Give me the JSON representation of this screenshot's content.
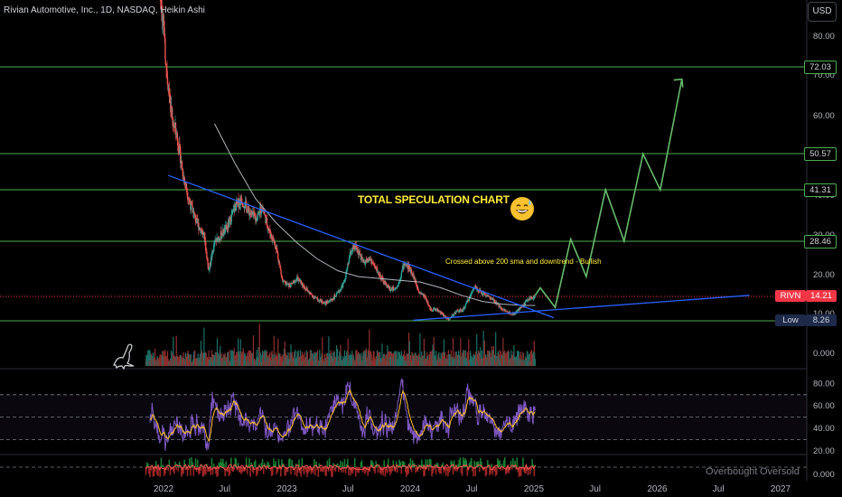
{
  "title": "Rivian Automotive, Inc., 1D, NASDAQ, Heikin Ashi",
  "currency_button": "USD",
  "annotations": {
    "headline": "TOTAL SPECULATION CHART",
    "note": "Crossed above 200 sma and downtrend - Bullish"
  },
  "price_labels": {
    "symbol": "RIVN",
    "last_price": "14.21",
    "low_label": "Low",
    "low_value": "8.26"
  },
  "oscillator_legend": {
    "overbought": "Overbought",
    "oversold": "Oversold"
  },
  "colors": {
    "background": "#000000",
    "level_line": "#4caf50",
    "trendline": "#2962ff",
    "projection": "#66bb6a",
    "up_candle": "#26a69a",
    "down_candle": "#ef5350",
    "rsi_line": "#7e57c2",
    "rsi_signal": "#fbc02d",
    "sma": "#b2b5be",
    "price_tag": "#f23645"
  },
  "chart_data": {
    "type": "candlestick",
    "title": "Rivian Automotive, Inc., 1D, NASDAQ, Heikin Ashi",
    "x_tick_labels": [
      "2022",
      "Jul",
      "2023",
      "Jul",
      "2024",
      "Jul",
      "2025",
      "Jul",
      "2026",
      "Jul",
      "2027"
    ],
    "x_tick_dates": [
      "2022-01-01",
      "2022-07-01",
      "2023-01-01",
      "2023-07-01",
      "2024-01-01",
      "2024-07-01",
      "2025-01-01",
      "2025-07-01",
      "2026-01-01",
      "2026-07-01",
      "2027-01-01"
    ],
    "price_axis": {
      "ticks": [
        10,
        20,
        30,
        40,
        60,
        70,
        80
      ],
      "tick_labels": [
        "10.00",
        "20.00",
        "30.00",
        "40.00",
        "60.00",
        "70.00",
        "80.00"
      ],
      "range": [
        8,
        86
      ]
    },
    "horizontal_levels": [
      {
        "value": 72.03,
        "label": "72.03"
      },
      {
        "value": 50.57,
        "label": "50.57"
      },
      {
        "value": 41.31,
        "label": "41.31"
      },
      {
        "value": 28.46,
        "label": "28.46"
      }
    ],
    "last_price": 14.21,
    "low": 8.26,
    "price_series": [
      {
        "date": "2021-11-10",
        "close": 100
      },
      {
        "date": "2021-12-01",
        "close": 112
      },
      {
        "date": "2021-12-20",
        "close": 95
      },
      {
        "date": "2022-01-10",
        "close": 72
      },
      {
        "date": "2022-01-25",
        "close": 60
      },
      {
        "date": "2022-02-10",
        "close": 55
      },
      {
        "date": "2022-03-01",
        "close": 45
      },
      {
        "date": "2022-03-20",
        "close": 38
      },
      {
        "date": "2022-04-10",
        "close": 33
      },
      {
        "date": "2022-05-01",
        "close": 30
      },
      {
        "date": "2022-05-15",
        "close": 21
      },
      {
        "date": "2022-06-01",
        "close": 28
      },
      {
        "date": "2022-06-20",
        "close": 30
      },
      {
        "date": "2022-07-10",
        "close": 32
      },
      {
        "date": "2022-08-01",
        "close": 37
      },
      {
        "date": "2022-08-20",
        "close": 39
      },
      {
        "date": "2022-09-10",
        "close": 36
      },
      {
        "date": "2022-10-01",
        "close": 34
      },
      {
        "date": "2022-10-20",
        "close": 37
      },
      {
        "date": "2022-11-10",
        "close": 31
      },
      {
        "date": "2022-12-01",
        "close": 27
      },
      {
        "date": "2022-12-20",
        "close": 18
      },
      {
        "date": "2023-01-10",
        "close": 17
      },
      {
        "date": "2023-02-01",
        "close": 19
      },
      {
        "date": "2023-02-20",
        "close": 17
      },
      {
        "date": "2023-03-10",
        "close": 15
      },
      {
        "date": "2023-04-01",
        "close": 13.5
      },
      {
        "date": "2023-04-25",
        "close": 12.5
      },
      {
        "date": "2023-05-15",
        "close": 13.5
      },
      {
        "date": "2023-06-01",
        "close": 15
      },
      {
        "date": "2023-06-20",
        "close": 18
      },
      {
        "date": "2023-07-10",
        "close": 26
      },
      {
        "date": "2023-07-25",
        "close": 27
      },
      {
        "date": "2023-08-15",
        "close": 23
      },
      {
        "date": "2023-09-05",
        "close": 24
      },
      {
        "date": "2023-09-25",
        "close": 21
      },
      {
        "date": "2023-10-15",
        "close": 18
      },
      {
        "date": "2023-11-05",
        "close": 16
      },
      {
        "date": "2023-11-25",
        "close": 17
      },
      {
        "date": "2023-12-15",
        "close": 23
      },
      {
        "date": "2024-01-05",
        "close": 21
      },
      {
        "date": "2024-01-25",
        "close": 16
      },
      {
        "date": "2024-02-15",
        "close": 14
      },
      {
        "date": "2024-03-01",
        "close": 11
      },
      {
        "date": "2024-03-20",
        "close": 11
      },
      {
        "date": "2024-04-10",
        "close": 9.5
      },
      {
        "date": "2024-04-25",
        "close": 8.6
      },
      {
        "date": "2024-05-15",
        "close": 10.5
      },
      {
        "date": "2024-06-05",
        "close": 10.8
      },
      {
        "date": "2024-06-25",
        "close": 14
      },
      {
        "date": "2024-07-10",
        "close": 17
      },
      {
        "date": "2024-07-25",
        "close": 15.5
      },
      {
        "date": "2024-08-15",
        "close": 14.5
      },
      {
        "date": "2024-09-05",
        "close": 13
      },
      {
        "date": "2024-09-25",
        "close": 11.5
      },
      {
        "date": "2024-10-15",
        "close": 10.3
      },
      {
        "date": "2024-11-05",
        "close": 10
      },
      {
        "date": "2024-11-25",
        "close": 11.5
      },
      {
        "date": "2024-12-15",
        "close": 13.5
      },
      {
        "date": "2025-01-05",
        "close": 14.21
      }
    ],
    "sma_200": [
      {
        "date": "2022-06-01",
        "close": 58
      },
      {
        "date": "2022-08-01",
        "close": 48
      },
      {
        "date": "2022-10-01",
        "close": 39
      },
      {
        "date": "2022-12-01",
        "close": 33
      },
      {
        "date": "2023-02-01",
        "close": 28
      },
      {
        "date": "2023-04-01",
        "close": 24
      },
      {
        "date": "2023-06-01",
        "close": 21
      },
      {
        "date": "2023-08-01",
        "close": 19.5
      },
      {
        "date": "2023-10-01",
        "close": 19
      },
      {
        "date": "2023-12-01",
        "close": 18.5
      },
      {
        "date": "2024-02-01",
        "close": 18
      },
      {
        "date": "2024-04-01",
        "close": 16.5
      },
      {
        "date": "2024-06-01",
        "close": 14.5
      },
      {
        "date": "2024-08-01",
        "close": 13
      },
      {
        "date": "2024-10-01",
        "close": 12.3
      },
      {
        "date": "2024-12-01",
        "close": 12
      },
      {
        "date": "2025-01-05",
        "close": 12
      }
    ],
    "downtrend_line": [
      {
        "date": "2022-01-15",
        "close": 45
      },
      {
        "date": "2025-03-01",
        "close": 9
      }
    ],
    "support_line": [
      {
        "date": "2024-01-10",
        "close": 8.4
      },
      {
        "date": "2026-10-01",
        "close": 14.5
      }
    ],
    "projection_path": [
      {
        "date": "2025-01-05",
        "close": 14.5
      },
      {
        "date": "2025-01-20",
        "close": 16.5
      },
      {
        "date": "2025-03-05",
        "close": 11.5
      },
      {
        "date": "2025-04-20",
        "close": 29
      },
      {
        "date": "2025-06-05",
        "close": 19.5
      },
      {
        "date": "2025-08-01",
        "close": 41.3
      },
      {
        "date": "2025-09-25",
        "close": 28.5
      },
      {
        "date": "2025-11-20",
        "close": 50.5
      },
      {
        "date": "2026-01-10",
        "close": 41.3
      },
      {
        "date": "2026-03-15",
        "close": 69
      }
    ],
    "rsi_axis": {
      "ticks": [
        20,
        40,
        60,
        80
      ],
      "tick_labels": [
        "20.00",
        "40.00",
        "60.00",
        "80.00"
      ],
      "range": [
        15,
        90
      ],
      "overbought": 70,
      "middle": 50,
      "oversold": 30
    },
    "volume_axis": {
      "tick_labels": [
        "0.000"
      ]
    },
    "lower_axis": {
      "tick_labels": [
        "0.000"
      ]
    }
  }
}
